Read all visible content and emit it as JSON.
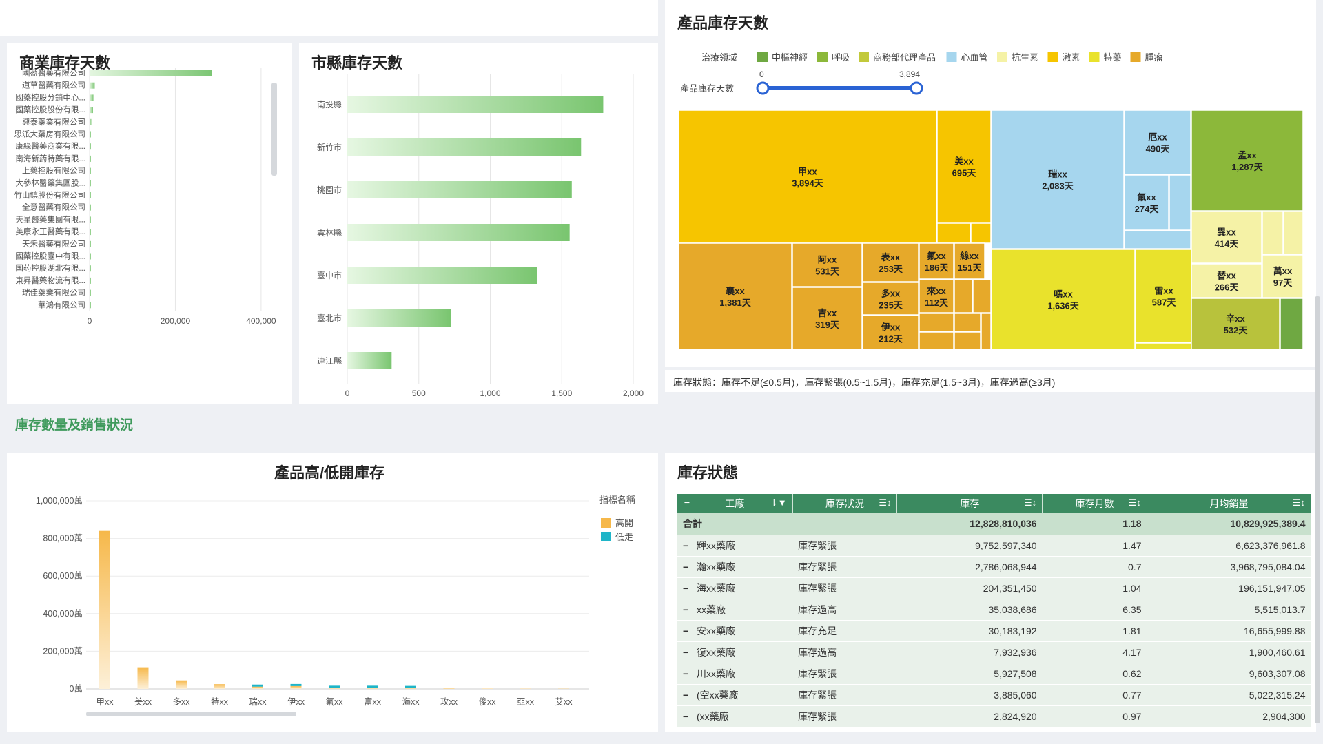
{
  "panels": {
    "commercial": {
      "title": "商業庫存天數"
    },
    "county": {
      "title": "市縣庫存天數"
    },
    "treemap": {
      "title": "產品庫存天數"
    },
    "section": {
      "title": "庫存數量及銷售狀況"
    },
    "highlow": {
      "title": "產品高/低開庫存"
    },
    "status": {
      "title": "庫存狀態"
    }
  },
  "colors": {
    "green_bar": "#7cc674",
    "header_green": "#3b8a60",
    "high": "#f6b84a",
    "low": "#1fb5c8",
    "slider": "#2a63d4"
  },
  "commercial_chart": {
    "type": "bar",
    "categories": [
      "國盈醫藥有限公司",
      "道草醫藥有限公司",
      "國藥控股分銷中心...",
      "國藥控股股份有限...",
      "興泰藥業有限公司",
      "思派大藥房有限公司",
      "康緣醫藥商業有限...",
      "南海新药特藥有限...",
      "上藥控股有限公司",
      "大參林醫藥集團股...",
      "竹山鎮股份有限公司",
      "全意醫藥有限公司",
      "天星醫藥集團有限...",
      "美康永正醫藥有限...",
      "天禾醫藥有限公司",
      "國藥控股臺中有限...",
      "国药控股湖北有限...",
      "東昇醫藥物流有限...",
      "瑞佳藥業有限公司",
      "華鴻有限公司"
    ],
    "values": [
      285000,
      12000,
      9000,
      8000,
      4000,
      3000,
      3000,
      2500,
      2500,
      2000,
      2000,
      1800,
      1500,
      1500,
      1200,
      1200,
      1000,
      1000,
      800,
      600
    ],
    "xlim": [
      0,
      450000
    ],
    "ticks": [
      0,
      200000,
      400000
    ],
    "tick_labels": [
      "0",
      "200,000",
      "400,000"
    ]
  },
  "county_chart": {
    "type": "bar",
    "categories": [
      "南投縣",
      "新竹市",
      "桃園市",
      "雲林縣",
      "臺中市",
      "臺北市",
      "連江縣"
    ],
    "values": [
      1790,
      1635,
      1570,
      1555,
      1330,
      725,
      310
    ],
    "xlim": [
      0,
      2000
    ],
    "ticks": [
      0,
      500,
      1000,
      1500,
      2000
    ],
    "tick_labels": [
      "0",
      "500",
      "1,000",
      "1,500",
      "2,000"
    ]
  },
  "treemap_legend": {
    "label": "治療領域",
    "items": [
      {
        "name": "中樞神經",
        "color": "#6fa842"
      },
      {
        "name": "呼吸",
        "color": "#8cb83a"
      },
      {
        "name": "商務部代理產品",
        "color": "#c2c93b"
      },
      {
        "name": "心血管",
        "color": "#a6d6ee"
      },
      {
        "name": "抗生素",
        "color": "#f5f2a6"
      },
      {
        "name": "激素",
        "color": "#f6c500"
      },
      {
        "name": "特藥",
        "color": "#e9e22c"
      },
      {
        "name": "腫瘤",
        "color": "#e6a92a"
      }
    ]
  },
  "slider": {
    "label": "產品庫存天數",
    "min": "0",
    "max": "3,894"
  },
  "treemap_labels": [
    {
      "name": "甲xx",
      "value": "3,894天"
    },
    {
      "name": "美xx",
      "value": "695天"
    },
    {
      "name": "瑞xx",
      "value": "2,083天"
    },
    {
      "name": "厄xx",
      "value": "490天"
    },
    {
      "name": "氟xx",
      "value": "274天"
    },
    {
      "name": "孟xx",
      "value": "1,287天"
    },
    {
      "name": "襄xx",
      "value": "1,381天"
    },
    {
      "name": "阿xx",
      "value": "531天"
    },
    {
      "name": "吉xx",
      "value": "319天"
    },
    {
      "name": "表xx",
      "value": "253天"
    },
    {
      "name": "多xx",
      "value": "235天"
    },
    {
      "name": "伊xx",
      "value": "212天"
    },
    {
      "name": "氟xx",
      "value": "186天"
    },
    {
      "name": "來xx",
      "value": "112天"
    },
    {
      "name": "絲xx",
      "value": "151天"
    },
    {
      "name": "嗎xx",
      "value": "1,636天"
    },
    {
      "name": "雷xx",
      "value": "587天"
    },
    {
      "name": "異xx",
      "value": "414天"
    },
    {
      "name": "替xx",
      "value": "266天"
    },
    {
      "name": "萬xx",
      "value": "97天"
    },
    {
      "name": "辛xx",
      "value": "532天"
    }
  ],
  "treemap_note": "庫存狀態：庫存不足(≤0.5月)，庫存緊張(0.5~1.5月)，庫存充足(1.5~3月)，庫存過高(≥3月)",
  "chart_data": [
    {
      "type": "bar",
      "title": "產品高/低開庫存",
      "categories": [
        "甲xx",
        "美xx",
        "多xx",
        "特xx",
        "瑞xx",
        "伊xx",
        "氟xx",
        "富xx",
        "海xx",
        "玫xx",
        "俊xx",
        "亞xx",
        "艾xx"
      ],
      "series": [
        {
          "name": "高開",
          "values": [
            840000,
            115000,
            45000,
            25000,
            12000,
            15000,
            6000,
            6000,
            5000,
            3000,
            2000,
            1500,
            1000
          ]
        },
        {
          "name": "低走",
          "values": [
            0,
            0,
            0,
            0,
            12000,
            15000,
            6000,
            6000,
            5000,
            0,
            0,
            0,
            0
          ]
        }
      ],
      "ylim": [
        0,
        1000000
      ],
      "yticks": [
        "0萬",
        "200,000萬",
        "400,000萬",
        "600,000萬",
        "800,000萬",
        "1,000,000萬"
      ],
      "legend_title": "指標名稱"
    }
  ],
  "table": {
    "headers": [
      "工廠",
      "庫存狀況",
      "庫存",
      "庫存月數",
      "月均銷量"
    ],
    "total": {
      "label": "合計",
      "stock": "12,828,810,036",
      "months": "1.18",
      "sales": "10,829,925,389.4"
    },
    "rows": [
      {
        "factory": "輝xx藥廠",
        "status": "庫存緊張",
        "stock": "9,752,597,340",
        "months": "1.47",
        "sales": "6,623,376,961.8"
      },
      {
        "factory": "瀚xx藥廠",
        "status": "庫存緊張",
        "stock": "2,786,068,944",
        "months": "0.7",
        "sales": "3,968,795,084.04"
      },
      {
        "factory": "海xx藥廠",
        "status": "庫存緊張",
        "stock": "204,351,450",
        "months": "1.04",
        "sales": "196,151,947.05"
      },
      {
        "factory": "xx藥廠",
        "status": "庫存過高",
        "stock": "35,038,686",
        "months": "6.35",
        "sales": "5,515,013.7"
      },
      {
        "factory": "安xx藥廠",
        "status": "庫存充足",
        "stock": "30,183,192",
        "months": "1.81",
        "sales": "16,655,999.88"
      },
      {
        "factory": "復xx藥廠",
        "status": "庫存過高",
        "stock": "7,932,936",
        "months": "4.17",
        "sales": "1,900,460.61"
      },
      {
        "factory": "川xx藥廠",
        "status": "庫存緊張",
        "stock": "5,927,508",
        "months": "0.62",
        "sales": "9,603,307.08"
      },
      {
        "factory": "(空xx藥廠",
        "status": "庫存緊張",
        "stock": "3,885,060",
        "months": "0.77",
        "sales": "5,022,315.24"
      },
      {
        "factory": "(xx藥廠",
        "status": "庫存緊張",
        "stock": "2,824,920",
        "months": "0.97",
        "sales": "2,904,300"
      }
    ]
  }
}
